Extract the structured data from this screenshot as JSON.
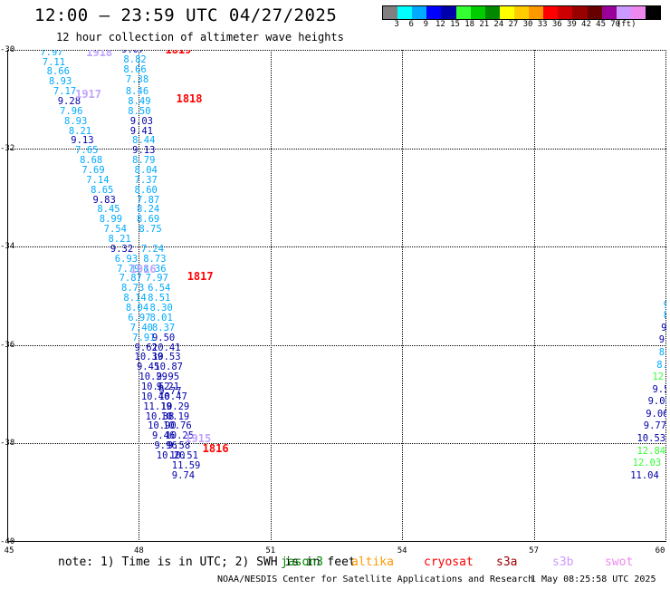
{
  "header": {
    "title": "12:00 — 23:59 UTC 04/27/2025",
    "subtitle": "12 hour collection of altimeter wave heights"
  },
  "colorbar": {
    "unit": "(ft)",
    "colors": [
      "#808080",
      "#00ffff",
      "#00aaff",
      "#0000ff",
      "#0000aa",
      "#33ff33",
      "#00cc00",
      "#008800",
      "#ffff00",
      "#ffcc00",
      "#ff9900",
      "#ff0000",
      "#cc0000",
      "#990000",
      "#660000",
      "#990099",
      "#cc99ff",
      "#ee88ee",
      "#000000"
    ],
    "labels": [
      "3",
      "6",
      "9",
      "12",
      "15",
      "18",
      "21",
      "24",
      "27",
      "30",
      "33",
      "36",
      "39",
      "42",
      "45",
      "70"
    ]
  },
  "map": {
    "lon_min": 45,
    "lon_max": 60,
    "lat_min": -40,
    "lat_max": -30,
    "lat_labels": [
      "-30",
      "-32",
      "-34",
      "-36",
      "-38",
      "-40"
    ],
    "lon_labels": [
      "45",
      "48",
      "51",
      "54",
      "57",
      "60"
    ]
  },
  "tracks": [
    {
      "label": "1918",
      "color": "#c0a4ff",
      "lon": 46.8,
      "lat": -30.05
    },
    {
      "label": "1819",
      "color": "#ff0000",
      "lon": 48.6,
      "lat": -30.0
    },
    {
      "label": "1917",
      "color": "#c0a4ff",
      "lon": 46.55,
      "lat": -30.9
    },
    {
      "label": "1818",
      "color": "#ff0000",
      "lon": 48.85,
      "lat": -31.0
    },
    {
      "label": "1916",
      "color": "#c0a4ff",
      "lon": 47.8,
      "lat": -34.45
    },
    {
      "label": "1817",
      "color": "#ff0000",
      "lon": 49.1,
      "lat": -34.6
    },
    {
      "label": "1915",
      "color": "#c0a4ff",
      "lon": 49.05,
      "lat": -37.9
    },
    {
      "label": "1816",
      "color": "#ff0000",
      "lon": 49.45,
      "lat": -38.1
    }
  ],
  "observations": [
    {
      "v": "7.97",
      "lon": 45.75,
      "lat": -30.05,
      "c": "#00aaff"
    },
    {
      "v": "7.11",
      "lon": 45.8,
      "lat": -30.25,
      "c": "#00aaff"
    },
    {
      "v": "8.66",
      "lon": 45.9,
      "lat": -30.45,
      "c": "#00aaff"
    },
    {
      "v": "8.93",
      "lon": 45.95,
      "lat": -30.65,
      "c": "#00aaff"
    },
    {
      "v": "7.17",
      "lon": 46.05,
      "lat": -30.85,
      "c": "#00aaff"
    },
    {
      "v": "9.28",
      "lon": 46.15,
      "lat": -31.05,
      "c": "#0000aa"
    },
    {
      "v": "7.96",
      "lon": 46.2,
      "lat": -31.25,
      "c": "#00aaff"
    },
    {
      "v": "8.93",
      "lon": 46.3,
      "lat": -31.45,
      "c": "#00aaff"
    },
    {
      "v": "8.21",
      "lon": 46.4,
      "lat": -31.65,
      "c": "#00aaff"
    },
    {
      "v": "9.13",
      "lon": 46.45,
      "lat": -31.85,
      "c": "#0000aa"
    },
    {
      "v": "7.65",
      "lon": 46.55,
      "lat": -32.05,
      "c": "#00aaff"
    },
    {
      "v": "8.68",
      "lon": 46.65,
      "lat": -32.25,
      "c": "#00aaff"
    },
    {
      "v": "7.69",
      "lon": 46.7,
      "lat": -32.45,
      "c": "#00aaff"
    },
    {
      "v": "7.14",
      "lon": 46.8,
      "lat": -32.65,
      "c": "#00aaff"
    },
    {
      "v": "8.65",
      "lon": 46.9,
      "lat": -32.85,
      "c": "#00aaff"
    },
    {
      "v": "9.83",
      "lon": 46.95,
      "lat": -33.05,
      "c": "#0000aa"
    },
    {
      "v": "8.45",
      "lon": 47.05,
      "lat": -33.25,
      "c": "#00aaff"
    },
    {
      "v": "8.99",
      "lon": 47.1,
      "lat": -33.45,
      "c": "#00aaff"
    },
    {
      "v": "7.54",
      "lon": 47.2,
      "lat": -33.65,
      "c": "#00aaff"
    },
    {
      "v": "8.21",
      "lon": 47.3,
      "lat": -33.85,
      "c": "#00aaff"
    },
    {
      "v": "9.32",
      "lon": 47.35,
      "lat": -34.05,
      "c": "#0000aa"
    },
    {
      "v": "6.93",
      "lon": 47.45,
      "lat": -34.25,
      "c": "#00aaff"
    },
    {
      "v": "7.79",
      "lon": 47.5,
      "lat": -34.45,
      "c": "#00aaff"
    },
    {
      "v": "7.87",
      "lon": 47.55,
      "lat": -34.65,
      "c": "#00aaff"
    },
    {
      "v": "8.73",
      "lon": 47.6,
      "lat": -34.85,
      "c": "#00aaff"
    },
    {
      "v": "8.14",
      "lon": 47.65,
      "lat": -35.05,
      "c": "#00aaff"
    },
    {
      "v": "8.04",
      "lon": 47.7,
      "lat": -35.25,
      "c": "#00aaff"
    },
    {
      "v": "6.97",
      "lon": 47.75,
      "lat": -35.45,
      "c": "#00aaff"
    },
    {
      "v": "7.40",
      "lon": 47.8,
      "lat": -35.65,
      "c": "#00aaff"
    },
    {
      "v": "7.91",
      "lon": 47.85,
      "lat": -35.85,
      "c": "#00aaff"
    },
    {
      "v": "9.62",
      "lon": 47.9,
      "lat": -36.05,
      "c": "#0000aa"
    },
    {
      "v": "10.39",
      "lon": 47.9,
      "lat": -36.25,
      "c": "#0000aa"
    },
    {
      "v": "9.45",
      "lon": 47.95,
      "lat": -36.45,
      "c": "#0000aa"
    },
    {
      "v": "10.29",
      "lon": 48.0,
      "lat": -36.65,
      "c": "#0000aa"
    },
    {
      "v": "10.62",
      "lon": 48.05,
      "lat": -36.85,
      "c": "#0000aa"
    },
    {
      "v": "10.40",
      "lon": 48.05,
      "lat": -37.05,
      "c": "#0000aa"
    },
    {
      "v": "11.19",
      "lon": 48.1,
      "lat": -37.25,
      "c": "#0000aa"
    },
    {
      "v": "10.38",
      "lon": 48.15,
      "lat": -37.45,
      "c": "#0000aa"
    },
    {
      "v": "10.90",
      "lon": 48.2,
      "lat": -37.65,
      "c": "#0000aa"
    },
    {
      "v": "9.46",
      "lon": 48.3,
      "lat": -37.85,
      "c": "#0000aa"
    },
    {
      "v": "9.96",
      "lon": 48.35,
      "lat": -38.05,
      "c": "#0000aa"
    },
    {
      "v": "10.20",
      "lon": 48.4,
      "lat": -38.25,
      "c": "#0000aa"
    },
    {
      "v": "9.07",
      "lon": 47.6,
      "lat": -30.0,
      "c": "#0000aa"
    },
    {
      "v": "8.82",
      "lon": 47.65,
      "lat": -30.2,
      "c": "#00aaff"
    },
    {
      "v": "8.66",
      "lon": 47.65,
      "lat": -30.4,
      "c": "#00aaff"
    },
    {
      "v": "7.38",
      "lon": 47.7,
      "lat": -30.6,
      "c": "#00aaff"
    },
    {
      "v": "8.46",
      "lon": 47.7,
      "lat": -30.85,
      "c": "#00aaff"
    },
    {
      "v": "8.49",
      "lon": 47.75,
      "lat": -31.05,
      "c": "#00aaff"
    },
    {
      "v": "8.50",
      "lon": 47.75,
      "lat": -31.25,
      "c": "#00aaff"
    },
    {
      "v": "9.03",
      "lon": 47.8,
      "lat": -31.45,
      "c": "#0000aa"
    },
    {
      "v": "9.41",
      "lon": 47.8,
      "lat": -31.65,
      "c": "#0000aa"
    },
    {
      "v": "8.44",
      "lon": 47.85,
      "lat": -31.85,
      "c": "#00aaff"
    },
    {
      "v": "9.13",
      "lon": 47.85,
      "lat": -32.05,
      "c": "#0000aa"
    },
    {
      "v": "8.79",
      "lon": 47.85,
      "lat": -32.25,
      "c": "#00aaff"
    },
    {
      "v": "8.04",
      "lon": 47.9,
      "lat": -32.45,
      "c": "#00aaff"
    },
    {
      "v": "7.37",
      "lon": 47.9,
      "lat": -32.65,
      "c": "#00aaff"
    },
    {
      "v": "8.60",
      "lon": 47.9,
      "lat": -32.85,
      "c": "#00aaff"
    },
    {
      "v": "7.87",
      "lon": 47.95,
      "lat": -33.05,
      "c": "#00aaff"
    },
    {
      "v": "8.24",
      "lon": 47.95,
      "lat": -33.25,
      "c": "#00aaff"
    },
    {
      "v": "8.69",
      "lon": 47.95,
      "lat": -33.45,
      "c": "#00aaff"
    },
    {
      "v": "8.75",
      "lon": 48.0,
      "lat": -33.65,
      "c": "#00aaff"
    },
    {
      "v": "7.24",
      "lon": 48.05,
      "lat": -34.05,
      "c": "#00aaff"
    },
    {
      "v": "8.73",
      "lon": 48.1,
      "lat": -34.25,
      "c": "#00aaff"
    },
    {
      "v": "8.36",
      "lon": 48.1,
      "lat": -34.45,
      "c": "#00aaff"
    },
    {
      "v": "7.97",
      "lon": 48.15,
      "lat": -34.65,
      "c": "#00aaff"
    },
    {
      "v": "6.54",
      "lon": 48.2,
      "lat": -34.85,
      "c": "#00aaff"
    },
    {
      "v": "8.51",
      "lon": 48.2,
      "lat": -35.05,
      "c": "#00aaff"
    },
    {
      "v": "8.30",
      "lon": 48.25,
      "lat": -35.25,
      "c": "#00aaff"
    },
    {
      "v": "8.01",
      "lon": 48.25,
      "lat": -35.45,
      "c": "#00aaff"
    },
    {
      "v": "8.37",
      "lon": 48.3,
      "lat": -35.65,
      "c": "#00aaff"
    },
    {
      "v": "9.50",
      "lon": 48.3,
      "lat": -35.85,
      "c": "#0000aa"
    },
    {
      "v": "10.41",
      "lon": 48.3,
      "lat": -36.05,
      "c": "#0000aa"
    },
    {
      "v": "10.53",
      "lon": 48.3,
      "lat": -36.25,
      "c": "#0000aa"
    },
    {
      "v": "10.87",
      "lon": 48.35,
      "lat": -36.45,
      "c": "#0000aa"
    },
    {
      "v": "9.95",
      "lon": 48.4,
      "lat": -36.65,
      "c": "#0000aa"
    },
    {
      "v": "9.21",
      "lon": 48.4,
      "lat": -36.85,
      "c": "#0000aa"
    },
    {
      "v": "10.47",
      "lon": 48.45,
      "lat": -37.05,
      "c": "#0000aa"
    },
    {
      "v": "10.29",
      "lon": 48.5,
      "lat": -37.25,
      "c": "#0000aa"
    },
    {
      "v": "10.19",
      "lon": 48.5,
      "lat": -37.45,
      "c": "#0000aa"
    },
    {
      "v": "10.76",
      "lon": 48.55,
      "lat": -37.65,
      "c": "#0000aa"
    },
    {
      "v": "10.25",
      "lon": 48.6,
      "lat": -37.85,
      "c": "#0000aa"
    },
    {
      "v": "9.58",
      "lon": 48.65,
      "lat": -38.05,
      "c": "#0000aa"
    },
    {
      "v": "10.51",
      "lon": 48.7,
      "lat": -38.25,
      "c": "#0000aa"
    },
    {
      "v": "11.59",
      "lon": 48.75,
      "lat": -38.45,
      "c": "#0000aa"
    },
    {
      "v": "9.74",
      "lon": 48.75,
      "lat": -38.65,
      "c": "#0000aa"
    },
    {
      "v": "9.77",
      "lon": 48.45,
      "lat": -36.95,
      "c": "#0000aa"
    },
    {
      "v": "9",
      "lon": 59.95,
      "lat": -35.2,
      "c": "#00aaff"
    },
    {
      "v": "8",
      "lon": 59.95,
      "lat": -35.4,
      "c": "#00aaff"
    },
    {
      "v": "9.",
      "lon": 59.9,
      "lat": -35.65,
      "c": "#0000aa"
    },
    {
      "v": "9.3",
      "lon": 59.85,
      "lat": -35.9,
      "c": "#0000aa"
    },
    {
      "v": "8.8",
      "lon": 59.85,
      "lat": -36.15,
      "c": "#00aaff"
    },
    {
      "v": "8.60",
      "lon": 59.8,
      "lat": -36.4,
      "c": "#00aaff"
    },
    {
      "v": "12.51",
      "lon": 59.7,
      "lat": -36.65,
      "c": "#33ff33"
    },
    {
      "v": "9.55",
      "lon": 59.7,
      "lat": -36.9,
      "c": "#0000aa"
    },
    {
      "v": "9.02",
      "lon": 59.6,
      "lat": -37.15,
      "c": "#0000aa"
    },
    {
      "v": "9.06",
      "lon": 59.55,
      "lat": -37.4,
      "c": "#0000aa"
    },
    {
      "v": "9.77",
      "lon": 59.5,
      "lat": -37.65,
      "c": "#0000aa"
    },
    {
      "v": "10.53",
      "lon": 59.35,
      "lat": -37.9,
      "c": "#0000aa"
    },
    {
      "v": "12.84",
      "lon": 59.35,
      "lat": -38.15,
      "c": "#33ff33"
    },
    {
      "v": "12.03",
      "lon": 59.25,
      "lat": -38.4,
      "c": "#33ff33"
    },
    {
      "v": "11.04",
      "lon": 59.2,
      "lat": -38.65,
      "c": "#0000aa"
    }
  ],
  "footer": {
    "note": "note: 1) Time is in UTC; 2) SWH is in feet",
    "credit": "NOAA/NESDIS Center for Satellite Applications and Research",
    "timestamp": "1 May 08:25:58 UTC 2025"
  },
  "legend": [
    {
      "name": "jason3",
      "color": "#008800"
    },
    {
      "name": "altika",
      "color": "#ff9900"
    },
    {
      "name": "cryosat",
      "color": "#ff0000"
    },
    {
      "name": "s3a",
      "color": "#990000"
    },
    {
      "name": "s3b",
      "color": "#cc99ff"
    },
    {
      "name": "swot",
      "color": "#ee88ee"
    }
  ]
}
